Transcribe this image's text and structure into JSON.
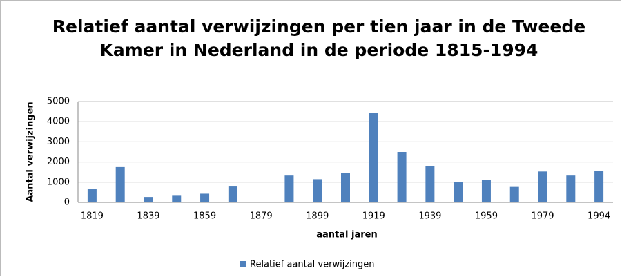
{
  "chart_data": {
    "type": "bar",
    "title": "Relatief aantal verwijzingen per tien jaar in de Tweede Kamer in Nederland in de periode 1815-1994",
    "x_label": "aantal jaren",
    "y_label": "Aantal verwijzingen",
    "categories": [
      "1819",
      null,
      "1839",
      null,
      "1859",
      null,
      "1879",
      null,
      "1899",
      null,
      "1919",
      null,
      "1939",
      null,
      "1959",
      null,
      "1979",
      null,
      "1994"
    ],
    "series": [
      {
        "name": "Relatief aantal verwijzingen",
        "color": "#4f81bd",
        "values": [
          650,
          1750,
          270,
          330,
          430,
          820,
          0,
          1330,
          1150,
          1460,
          4450,
          2500,
          1800,
          1000,
          1130,
          800,
          1530,
          1330,
          1570
        ]
      }
    ],
    "ylim": [
      0,
      5000
    ],
    "yticks": [
      0,
      1000,
      2000,
      3000,
      4000,
      5000
    ],
    "grid": true,
    "legend": "bottom"
  }
}
